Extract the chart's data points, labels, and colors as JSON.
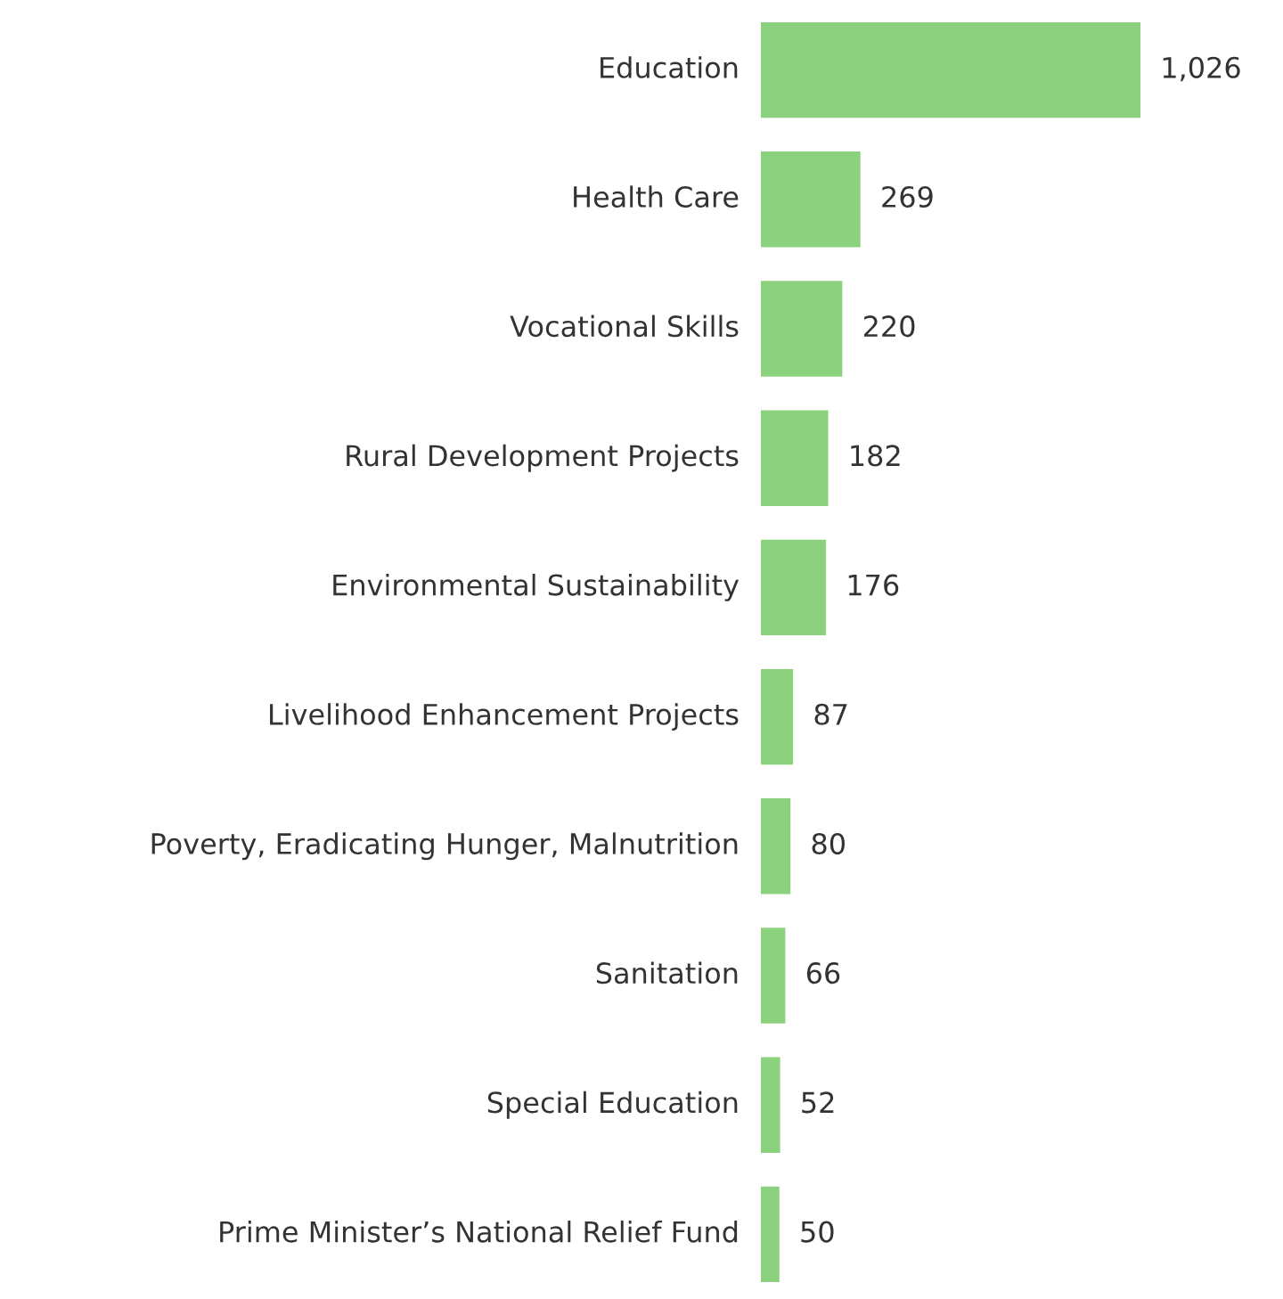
{
  "chart_data": {
    "type": "bar",
    "orientation": "horizontal",
    "categories": [
      "Education",
      "Health Care",
      "Vocational Skills",
      "Rural Development Projects",
      "Environmental Sustainability",
      "Livelihood Enhancement Projects",
      "Poverty, Eradicating Hunger, Malnutrition",
      "Sanitation",
      "Special Education",
      "Prime Minister’s National Relief Fund"
    ],
    "values": [
      1026,
      269,
      220,
      182,
      176,
      87,
      80,
      66,
      52,
      50
    ],
    "value_labels": [
      "1,026",
      "269",
      "220",
      "182",
      "176",
      "87",
      "80",
      "66",
      "52",
      "50"
    ],
    "color": "#8cd17d"
  }
}
